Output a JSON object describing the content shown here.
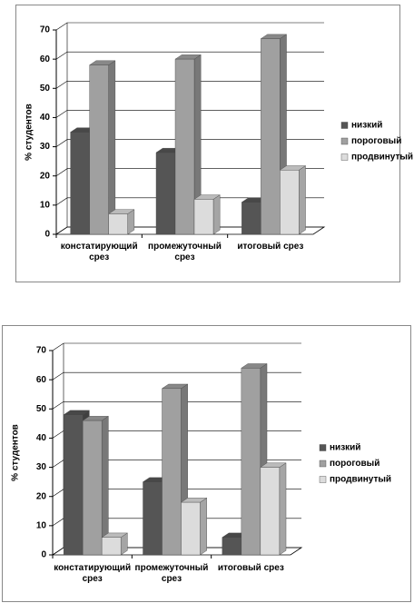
{
  "chart_data": [
    {
      "type": "bar",
      "y_label": "% студентов",
      "categories": [
        "констатирующий срез",
        "промежуточный срез",
        "итоговый срез"
      ],
      "series": [
        {
          "name": "низкий",
          "color": "#555555",
          "values": [
            35,
            28,
            11
          ]
        },
        {
          "name": "пороговый",
          "color": "#a0a0a0",
          "values": [
            58,
            60,
            67
          ]
        },
        {
          "name": "продвинутый",
          "color": "#dcdcdc",
          "values": [
            7,
            12,
            22
          ]
        }
      ],
      "ylim": [
        0,
        70
      ],
      "yticks": [
        0,
        10,
        20,
        30,
        40,
        50,
        60,
        70
      ],
      "grid": true,
      "legend": "right"
    },
    {
      "type": "bar",
      "y_label": "% студентов",
      "categories": [
        "констатирующий срез",
        "промежуточный срез",
        "итоговый срез"
      ],
      "series": [
        {
          "name": "низкий",
          "color": "#555555",
          "values": [
            48,
            25,
            6
          ]
        },
        {
          "name": "пороговый",
          "color": "#a0a0a0",
          "values": [
            46,
            57,
            64
          ]
        },
        {
          "name": "продвинутый",
          "color": "#dcdcdc",
          "values": [
            6,
            18,
            30
          ]
        }
      ],
      "ylim": [
        0,
        70
      ],
      "yticks": [
        0,
        10,
        20,
        30,
        40,
        50,
        60,
        70
      ],
      "grid": true,
      "legend": "right"
    }
  ]
}
